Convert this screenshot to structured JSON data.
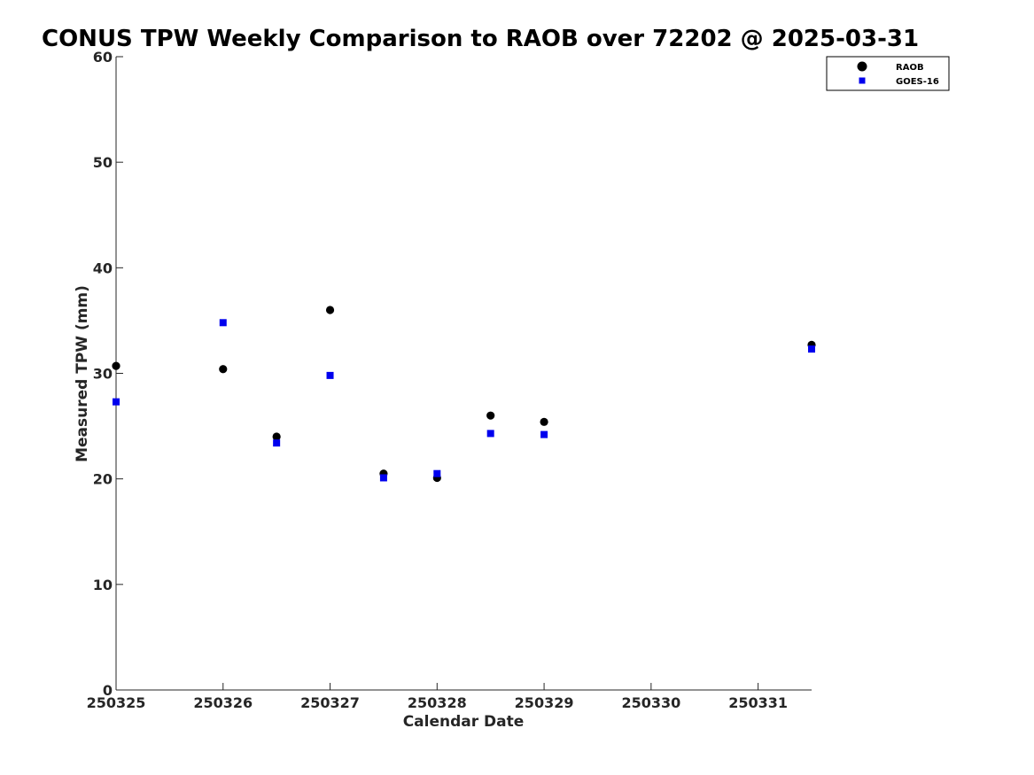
{
  "chart_data": {
    "type": "scatter",
    "title": "CONUS TPW Weekly Comparison to RAOB over 72202 @ 2025-03-31",
    "xlabel": "Calendar Date",
    "ylabel": "Measured TPW (mm)",
    "xlim": [
      0,
      6.5
    ],
    "ylim": [
      0,
      60
    ],
    "x_ticks": [
      0,
      1,
      2,
      3,
      4,
      5,
      6
    ],
    "x_tick_labels": [
      "250325",
      "250326",
      "250327",
      "250328",
      "250329",
      "250330",
      "250331"
    ],
    "y_ticks": [
      0,
      10,
      20,
      30,
      40,
      50,
      60
    ],
    "y_tick_labels": [
      "0",
      "10",
      "20",
      "30",
      "40",
      "50",
      "60"
    ],
    "grid": false,
    "legend_position": "top-right",
    "series": [
      {
        "name": "RAOB",
        "marker": "circle",
        "color": "#000000",
        "x": [
          0,
          1,
          1.5,
          2,
          2.5,
          3,
          3.5,
          4,
          6.5
        ],
        "values": [
          30.7,
          30.4,
          24.0,
          36.0,
          20.5,
          20.1,
          26.0,
          25.4,
          32.7
        ]
      },
      {
        "name": "GOES-16",
        "marker": "square",
        "color": "#0000ee",
        "x": [
          0,
          1,
          1.5,
          2,
          2.5,
          3,
          3.5,
          4,
          6.5
        ],
        "values": [
          27.3,
          34.8,
          23.4,
          29.8,
          20.1,
          20.5,
          24.3,
          24.2,
          32.3
        ]
      }
    ]
  }
}
